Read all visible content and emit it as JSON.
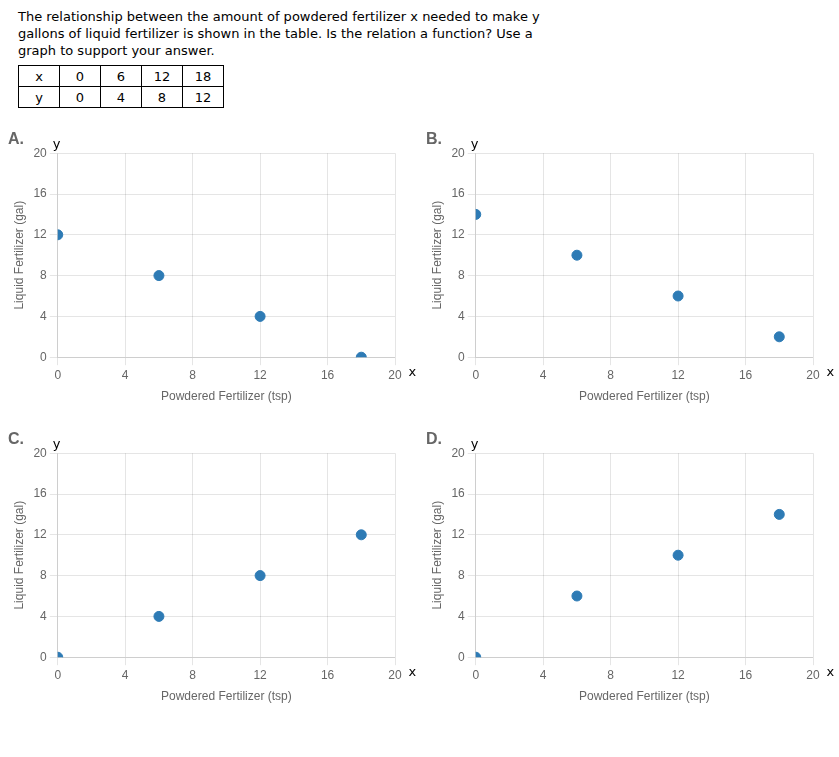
{
  "chart_data": [
    {
      "type": "table",
      "title": [
        "The relationship between the amount of powdered fertilizer x needed to make y",
        "gallons of liquid fertilizer is shown in the table. Is the relation a function? Use a",
        "graph to support your answer."
      ],
      "xlabel": "x",
      "ylabel": "y",
      "x": [
        0,
        6,
        12,
        18
      ],
      "values": [
        0,
        4,
        8,
        12
      ]
    },
    {
      "type": "scatter",
      "title": "A.",
      "x": [
        0,
        6,
        12,
        18
      ],
      "values": [
        12,
        8,
        4,
        0
      ],
      "color": "#2e7bb5",
      "xlabel": "Powdered Fertilizer (tsp)",
      "ylabel": "Liquid Fertilizer (gal)",
      "xlim": [
        0,
        20
      ],
      "ylim": [
        0,
        20
      ],
      "xticks": [
        0,
        4,
        8,
        12,
        16,
        20
      ],
      "yticks": [
        0,
        4,
        8,
        12,
        16,
        20
      ],
      "grid": true,
      "annotations": [
        {
          "text": "y",
          "x": -0.3,
          "y": 20.8
        },
        {
          "text": "x",
          "x": 20.8,
          "y": -1.5
        }
      ]
    },
    {
      "type": "scatter",
      "title": "B.",
      "x": [
        0,
        6,
        12,
        18
      ],
      "values": [
        14,
        10,
        6,
        2
      ],
      "color": "#2e7bb5",
      "xlabel": "Powdered Fertilizer (tsp)",
      "ylabel": "Liquid Fertilizer (gal)",
      "xlim": [
        0,
        20
      ],
      "ylim": [
        0,
        20
      ],
      "xticks": [
        0,
        4,
        8,
        12,
        16,
        20
      ],
      "yticks": [
        0,
        4,
        8,
        12,
        16,
        20
      ],
      "grid": true,
      "annotations": [
        {
          "text": "y",
          "x": -0.3,
          "y": 20.8
        },
        {
          "text": "x",
          "x": 20.8,
          "y": -1.5
        }
      ]
    },
    {
      "type": "scatter",
      "title": "C.",
      "x": [
        0,
        6,
        12,
        18
      ],
      "values": [
        0,
        4,
        8,
        12
      ],
      "color": "#2e7bb5",
      "xlabel": "Powdered Fertilizer (tsp)",
      "ylabel": "Liquid Fertilizer (gal)",
      "xlim": [
        0,
        20
      ],
      "ylim": [
        0,
        20
      ],
      "xticks": [
        0,
        4,
        8,
        12,
        16,
        20
      ],
      "yticks": [
        0,
        4,
        8,
        12,
        16,
        20
      ],
      "grid": true,
      "annotations": [
        {
          "text": "y",
          "x": -0.3,
          "y": 20.8
        },
        {
          "text": "x",
          "x": 20.8,
          "y": -1.5
        }
      ]
    },
    {
      "type": "scatter",
      "title": "D.",
      "x": [
        0,
        6,
        12,
        18
      ],
      "values": [
        0,
        6,
        10,
        14
      ],
      "color": "#2e7bb5",
      "xlabel": "Powdered Fertilizer (tsp)",
      "ylabel": "Liquid Fertilizer (gal)",
      "xlim": [
        0,
        20
      ],
      "ylim": [
        0,
        20
      ],
      "xticks": [
        0,
        4,
        8,
        12,
        16,
        20
      ],
      "yticks": [
        0,
        4,
        8,
        12,
        16,
        20
      ],
      "grid": true,
      "annotations": [
        {
          "text": "y",
          "x": -0.3,
          "y": 20.8
        },
        {
          "text": "x",
          "x": 20.8,
          "y": -1.5
        }
      ]
    }
  ]
}
